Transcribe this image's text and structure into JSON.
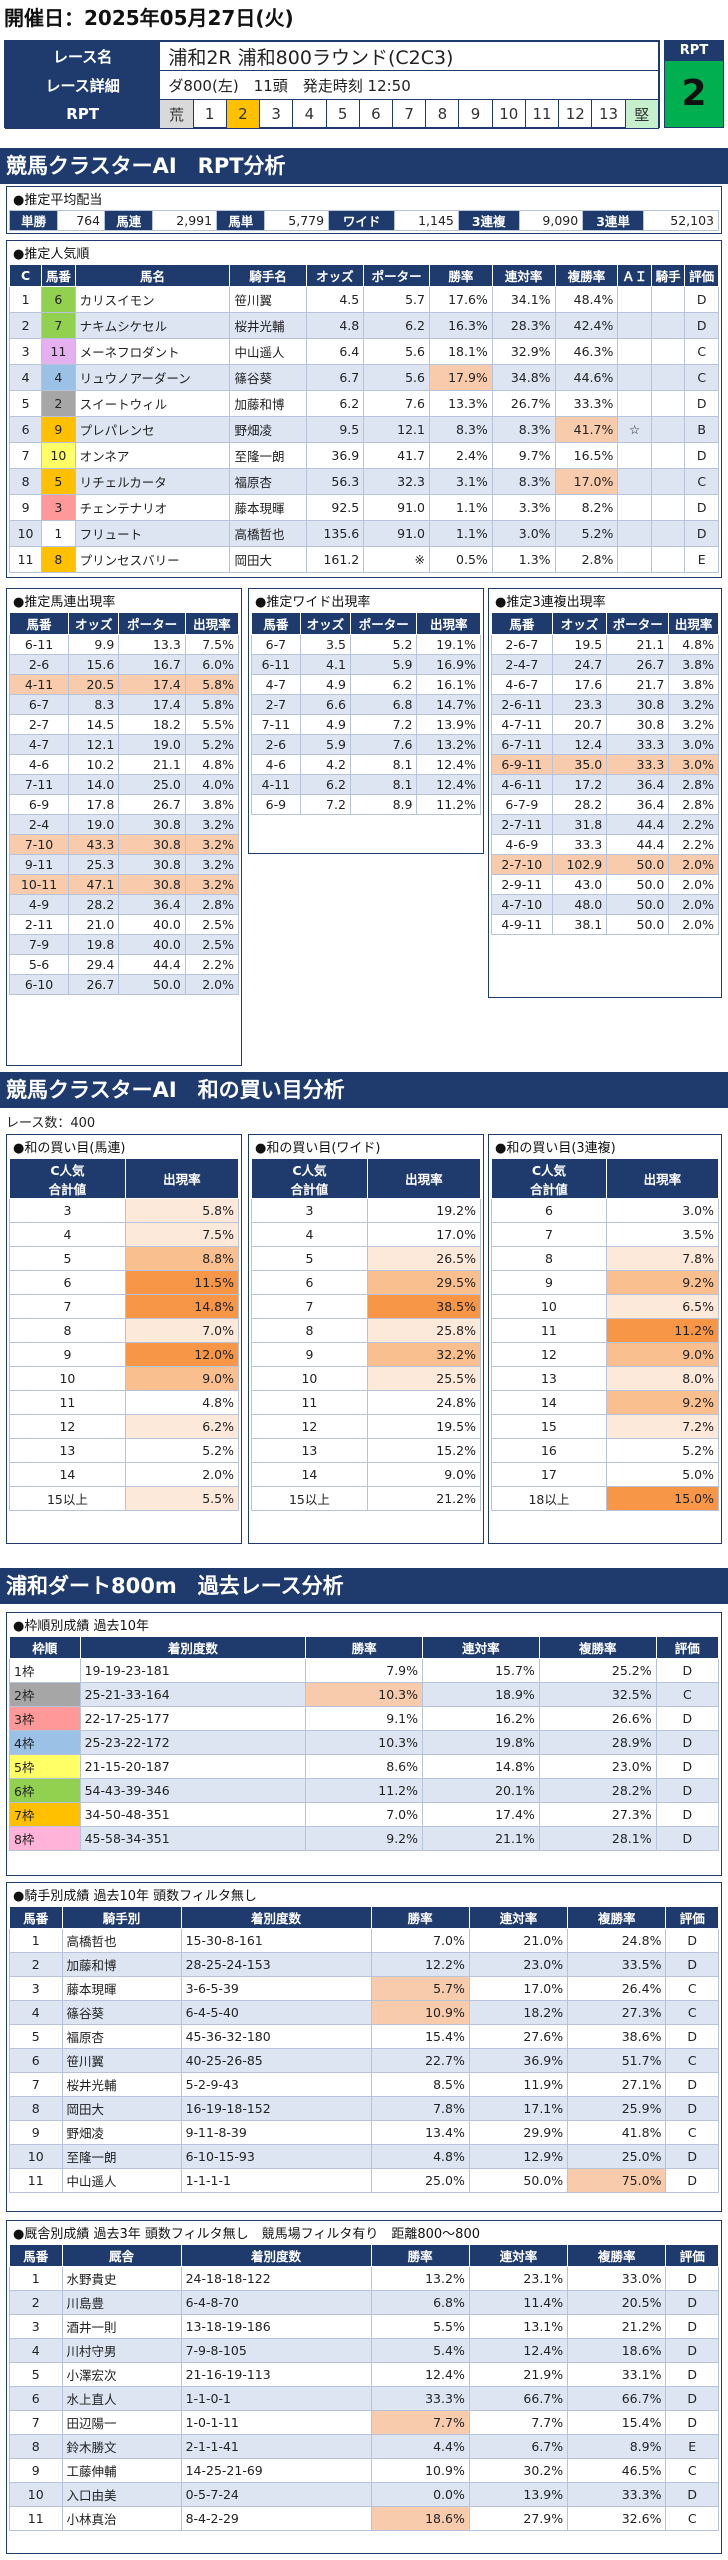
{
  "header": {
    "title": "開催日：2025年05月27日(火)"
  },
  "race": {
    "name_label": "レース名",
    "name": "浦和2R 浦和800ラウンド(C2C3)",
    "detail_label": "レース詳細",
    "detail": "ダ800(左)　11頭　発走時刻 12:50",
    "rpt_label": "RPT",
    "rpt_scale": [
      "荒",
      "1",
      "2",
      "3",
      "4",
      "5",
      "6",
      "7",
      "8",
      "9",
      "10",
      "11",
      "12",
      "13",
      "堅"
    ],
    "rpt_selected": "2",
    "rpt_box_label": "RPT",
    "rpt_value": "2"
  },
  "section1": {
    "title": "競馬クラスターAI　RPT分析"
  },
  "payout": {
    "title": "●推定平均配当",
    "items": [
      {
        "k": "単勝",
        "v": "764"
      },
      {
        "k": "馬連",
        "v": "2,991"
      },
      {
        "k": "馬単",
        "v": "5,779"
      },
      {
        "k": "ワイド",
        "v": "1,145"
      },
      {
        "k": "3連複",
        "v": "9,090"
      },
      {
        "k": "3連単",
        "v": "52,103"
      }
    ]
  },
  "popular": {
    "title": "●推定人気順",
    "headers": [
      "C",
      "馬番",
      "馬名",
      "騎手名",
      "オッズ",
      "ポーター",
      "勝率",
      "連対率",
      "複勝率",
      "ＡＩ",
      "騎手",
      "評価"
    ],
    "rows": [
      [
        "1",
        "6",
        "カリスイモン",
        "笹川翼",
        "4.5",
        "5.7",
        "17.6%",
        "34.1%",
        "48.4%",
        "",
        "",
        "D"
      ],
      [
        "2",
        "7",
        "ナキムシケセル",
        "桜井光輔",
        "4.8",
        "6.2",
        "16.3%",
        "28.3%",
        "42.4%",
        "",
        "",
        "D"
      ],
      [
        "3",
        "11",
        "メーネフロダント",
        "中山遥人",
        "6.4",
        "5.6",
        "18.1%",
        "32.9%",
        "46.3%",
        "",
        "",
        "C"
      ],
      [
        "4",
        "4",
        "リュウノアーダーン",
        "篠谷葵",
        "6.7",
        "5.6",
        "17.9%",
        "34.8%",
        "44.6%",
        "",
        "",
        "C"
      ],
      [
        "5",
        "2",
        "スイートウィル",
        "加藤和博",
        "6.2",
        "7.6",
        "13.3%",
        "26.7%",
        "33.3%",
        "",
        "",
        "D"
      ],
      [
        "6",
        "9",
        "プレパレンセ",
        "野畑凌",
        "9.5",
        "12.1",
        "8.3%",
        "8.3%",
        "41.7%",
        "☆",
        "",
        "B"
      ],
      [
        "7",
        "10",
        "オンネア",
        "至隆一朗",
        "36.9",
        "41.7",
        "2.4%",
        "9.7%",
        "16.5%",
        "",
        "",
        "D"
      ],
      [
        "8",
        "5",
        "リチェルカータ",
        "福原杏",
        "56.3",
        "32.3",
        "3.1%",
        "8.3%",
        "17.0%",
        "",
        "",
        "C"
      ],
      [
        "9",
        "3",
        "チェンテナリオ",
        "藤本現暉",
        "92.5",
        "91.0",
        "1.1%",
        "3.3%",
        "8.2%",
        "",
        "",
        "D"
      ],
      [
        "10",
        "1",
        "フリュート",
        "高橋哲也",
        "135.6",
        "91.0",
        "1.1%",
        "3.0%",
        "5.2%",
        "",
        "",
        "D"
      ],
      [
        "11",
        "8",
        "プリンセスバリー",
        "岡田大",
        "161.2",
        "※",
        "0.5%",
        "1.3%",
        "2.8%",
        "",
        "",
        "E"
      ]
    ]
  },
  "umaren": {
    "title": "●推定馬連出現率",
    "headers": [
      "馬番",
      "オッズ",
      "ポーター",
      "出現率"
    ],
    "rows": [
      [
        "6-11",
        "9.9",
        "13.3",
        "7.5%"
      ],
      [
        "2-6",
        "15.6",
        "16.7",
        "6.0%"
      ],
      [
        "4-11",
        "20.5",
        "17.4",
        "5.8%"
      ],
      [
        "6-7",
        "8.3",
        "17.4",
        "5.8%"
      ],
      [
        "2-7",
        "14.5",
        "18.2",
        "5.5%"
      ],
      [
        "4-7",
        "12.1",
        "19.0",
        "5.2%"
      ],
      [
        "4-6",
        "10.2",
        "21.1",
        "4.8%"
      ],
      [
        "7-11",
        "14.0",
        "25.0",
        "4.0%"
      ],
      [
        "6-9",
        "17.8",
        "26.7",
        "3.8%"
      ],
      [
        "2-4",
        "19.0",
        "30.8",
        "3.2%"
      ],
      [
        "7-10",
        "43.3",
        "30.8",
        "3.2%"
      ],
      [
        "9-11",
        "25.3",
        "30.8",
        "3.2%"
      ],
      [
        "10-11",
        "47.1",
        "30.8",
        "3.2%"
      ],
      [
        "4-9",
        "28.2",
        "36.4",
        "2.8%"
      ],
      [
        "2-11",
        "21.0",
        "40.0",
        "2.5%"
      ],
      [
        "7-9",
        "19.8",
        "40.0",
        "2.5%"
      ],
      [
        "5-6",
        "29.4",
        "44.4",
        "2.2%"
      ],
      [
        "6-10",
        "26.7",
        "50.0",
        "2.0%"
      ]
    ]
  },
  "wide": {
    "title": "●推定ワイド出現率",
    "headers": [
      "馬番",
      "オッズ",
      "ポーター",
      "出現率"
    ],
    "rows": [
      [
        "6-7",
        "3.5",
        "5.2",
        "19.1%"
      ],
      [
        "6-11",
        "4.1",
        "5.9",
        "16.9%"
      ],
      [
        "4-7",
        "4.9",
        "6.2",
        "16.1%"
      ],
      [
        "2-7",
        "6.6",
        "6.8",
        "14.7%"
      ],
      [
        "7-11",
        "4.9",
        "7.2",
        "13.9%"
      ],
      [
        "2-6",
        "5.9",
        "7.6",
        "13.2%"
      ],
      [
        "4-6",
        "4.2",
        "8.1",
        "12.4%"
      ],
      [
        "4-11",
        "6.2",
        "8.1",
        "12.4%"
      ],
      [
        "6-9",
        "7.2",
        "8.9",
        "11.2%"
      ]
    ]
  },
  "sanfuku": {
    "title": "●推定3連複出現率",
    "headers": [
      "馬番",
      "オッズ",
      "ポーター",
      "出現率"
    ],
    "rows": [
      [
        "2-6-7",
        "19.5",
        "21.1",
        "4.8%"
      ],
      [
        "2-4-7",
        "24.7",
        "26.7",
        "3.8%"
      ],
      [
        "4-6-7",
        "17.6",
        "21.7",
        "3.8%"
      ],
      [
        "2-6-11",
        "23.3",
        "30.8",
        "3.2%"
      ],
      [
        "4-7-11",
        "20.7",
        "30.8",
        "3.2%"
      ],
      [
        "6-7-11",
        "12.4",
        "33.3",
        "3.0%"
      ],
      [
        "6-9-11",
        "35.0",
        "33.3",
        "3.0%"
      ],
      [
        "4-6-11",
        "17.2",
        "36.4",
        "2.8%"
      ],
      [
        "6-7-9",
        "28.2",
        "36.4",
        "2.8%"
      ],
      [
        "2-7-11",
        "31.8",
        "44.4",
        "2.2%"
      ],
      [
        "4-6-9",
        "33.3",
        "44.4",
        "2.2%"
      ],
      [
        "2-7-10",
        "102.9",
        "50.0",
        "2.0%"
      ],
      [
        "2-9-11",
        "43.0",
        "50.0",
        "2.0%"
      ],
      [
        "4-7-10",
        "48.0",
        "50.0",
        "2.0%"
      ],
      [
        "4-9-11",
        "38.1",
        "50.0",
        "2.0%"
      ]
    ]
  },
  "section2": {
    "title": "競馬クラスターAI　和の買い目分析",
    "race_count": "レース数：400"
  },
  "wa_umaren": {
    "title": "●和の買い目(馬連)",
    "headers": [
      "C人気\n合計値",
      "出現率"
    ],
    "rows": [
      [
        "3",
        "5.8%"
      ],
      [
        "4",
        "7.5%"
      ],
      [
        "5",
        "8.8%"
      ],
      [
        "6",
        "11.5%"
      ],
      [
        "7",
        "14.8%"
      ],
      [
        "8",
        "7.0%"
      ],
      [
        "9",
        "12.0%"
      ],
      [
        "10",
        "9.0%"
      ],
      [
        "11",
        "4.8%"
      ],
      [
        "12",
        "6.2%"
      ],
      [
        "13",
        "5.2%"
      ],
      [
        "14",
        "2.0%"
      ],
      [
        "15以上",
        "5.5%"
      ]
    ]
  },
  "wa_wide": {
    "title": "●和の買い目(ワイド)",
    "headers": [
      "C人気\n合計値",
      "出現率"
    ],
    "rows": [
      [
        "3",
        "19.2%"
      ],
      [
        "4",
        "17.0%"
      ],
      [
        "5",
        "26.5%"
      ],
      [
        "6",
        "29.5%"
      ],
      [
        "7",
        "38.5%"
      ],
      [
        "8",
        "25.8%"
      ],
      [
        "9",
        "32.2%"
      ],
      [
        "10",
        "25.5%"
      ],
      [
        "11",
        "24.8%"
      ],
      [
        "12",
        "19.5%"
      ],
      [
        "13",
        "15.2%"
      ],
      [
        "14",
        "9.0%"
      ],
      [
        "15以上",
        "21.2%"
      ]
    ]
  },
  "wa_sanfuku": {
    "title": "●和の買い目(3連複)",
    "headers": [
      "C人気\n合計値",
      "出現率"
    ],
    "rows": [
      [
        "6",
        "3.0%"
      ],
      [
        "7",
        "3.5%"
      ],
      [
        "8",
        "7.8%"
      ],
      [
        "9",
        "9.2%"
      ],
      [
        "10",
        "6.5%"
      ],
      [
        "11",
        "11.2%"
      ],
      [
        "12",
        "9.0%"
      ],
      [
        "13",
        "8.0%"
      ],
      [
        "14",
        "9.2%"
      ],
      [
        "15",
        "7.2%"
      ],
      [
        "16",
        "5.2%"
      ],
      [
        "17",
        "5.0%"
      ],
      [
        "18以上",
        "15.0%"
      ]
    ]
  },
  "section3": {
    "title": "浦和ダート800m　過去レース分析"
  },
  "waku": {
    "title": "●枠順別成績 過去10年",
    "headers": [
      "枠順",
      "着別度数",
      "勝率",
      "連対率",
      "複勝率",
      "評価"
    ],
    "rows": [
      [
        "1枠",
        "19-19-23-181",
        "7.9%",
        "15.7%",
        "25.2%",
        "D"
      ],
      [
        "2枠",
        "25-21-33-164",
        "10.3%",
        "18.9%",
        "32.5%",
        "C"
      ],
      [
        "3枠",
        "22-17-25-177",
        "9.1%",
        "16.2%",
        "26.6%",
        "D"
      ],
      [
        "4枠",
        "25-23-22-172",
        "10.3%",
        "19.8%",
        "28.9%",
        "D"
      ],
      [
        "5枠",
        "21-15-20-187",
        "8.6%",
        "14.8%",
        "23.0%",
        "D"
      ],
      [
        "6枠",
        "54-43-39-346",
        "11.2%",
        "20.1%",
        "28.2%",
        "D"
      ],
      [
        "7枠",
        "34-50-48-351",
        "7.0%",
        "17.4%",
        "27.3%",
        "D"
      ],
      [
        "8枠",
        "45-58-34-351",
        "9.2%",
        "21.1%",
        "28.1%",
        "D"
      ]
    ]
  },
  "jockey": {
    "title": "●騎手別成績 過去10年 頭数フィルタ無し",
    "headers": [
      "馬番",
      "騎手別",
      "着別度数",
      "勝率",
      "連対率",
      "複勝率",
      "評価"
    ],
    "rows": [
      [
        "1",
        "高橋哲也",
        "15-30-8-161",
        "7.0%",
        "21.0%",
        "24.8%",
        "D"
      ],
      [
        "2",
        "加藤和博",
        "28-25-24-153",
        "12.2%",
        "23.0%",
        "33.5%",
        "D"
      ],
      [
        "3",
        "藤本現暉",
        "3-6-5-39",
        "5.7%",
        "17.0%",
        "26.4%",
        "C"
      ],
      [
        "4",
        "篠谷葵",
        "6-4-5-40",
        "10.9%",
        "18.2%",
        "27.3%",
        "C"
      ],
      [
        "5",
        "福原杏",
        "45-36-32-180",
        "15.4%",
        "27.6%",
        "38.6%",
        "D"
      ],
      [
        "6",
        "笹川翼",
        "40-25-26-85",
        "22.7%",
        "36.9%",
        "51.7%",
        "C"
      ],
      [
        "7",
        "桜井光輔",
        "5-2-9-43",
        "8.5%",
        "11.9%",
        "27.1%",
        "D"
      ],
      [
        "8",
        "岡田大",
        "16-19-18-152",
        "7.8%",
        "17.1%",
        "25.9%",
        "D"
      ],
      [
        "9",
        "野畑凌",
        "9-11-8-39",
        "13.4%",
        "29.9%",
        "41.8%",
        "C"
      ],
      [
        "10",
        "至隆一朗",
        "6-10-15-93",
        "4.8%",
        "12.9%",
        "25.0%",
        "D"
      ],
      [
        "11",
        "中山遥人",
        "1-1-1-1",
        "25.0%",
        "50.0%",
        "75.0%",
        "D"
      ]
    ]
  },
  "trainer": {
    "title": "●厩舎別成績 過去3年 頭数フィルタ無し　競馬場フィルタ有り　距離800～800",
    "headers": [
      "馬番",
      "厩舎",
      "着別度数",
      "勝率",
      "連対率",
      "複勝率",
      "評価"
    ],
    "rows": [
      [
        "1",
        "水野貴史",
        "24-18-18-122",
        "13.2%",
        "23.1%",
        "33.0%",
        "D"
      ],
      [
        "2",
        "川島豊",
        "6-4-8-70",
        "6.8%",
        "11.4%",
        "20.5%",
        "D"
      ],
      [
        "3",
        "酒井一則",
        "13-18-19-186",
        "5.5%",
        "13.1%",
        "21.2%",
        "D"
      ],
      [
        "4",
        "川村守男",
        "7-9-8-105",
        "5.4%",
        "12.4%",
        "18.6%",
        "D"
      ],
      [
        "5",
        "小澤宏次",
        "21-16-19-113",
        "12.4%",
        "21.9%",
        "33.1%",
        "D"
      ],
      [
        "6",
        "水上直人",
        "1-1-0-1",
        "33.3%",
        "66.7%",
        "66.7%",
        "D"
      ],
      [
        "7",
        "田辺陽一",
        "1-0-1-11",
        "7.7%",
        "7.7%",
        "15.4%",
        "D"
      ],
      [
        "8",
        "鈴木勝文",
        "2-1-1-41",
        "4.4%",
        "6.7%",
        "8.9%",
        "E"
      ],
      [
        "9",
        "工藤伸輔",
        "14-25-21-69",
        "10.9%",
        "30.2%",
        "46.5%",
        "C"
      ],
      [
        "10",
        "入口由美",
        "0-5-7-24",
        "0.0%",
        "13.9%",
        "33.3%",
        "D"
      ],
      [
        "11",
        "小林真治",
        "8-4-2-29",
        "18.6%",
        "27.9%",
        "32.6%",
        "C"
      ]
    ]
  },
  "colors": {
    "navy": "#1f3b6e",
    "rpt_green": "#00b050",
    "rpt_hl": "#ffc000",
    "hl_pink": "#f8cbad",
    "hl_light": "#fde9d9",
    "hl_orange_dark": "#f79646",
    "hl_orange_mid": "#fabf8f"
  }
}
